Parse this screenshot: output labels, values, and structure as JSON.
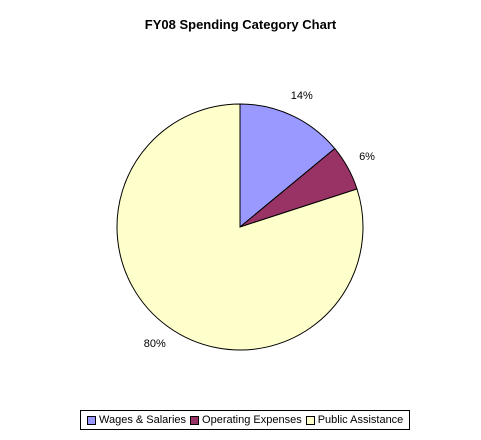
{
  "chart_data": {
    "type": "pie",
    "title": "FY08 Spending Category Chart",
    "legend_position": "bottom",
    "slices": [
      {
        "name": "Wages & Salaries",
        "value": 14,
        "label": "14%",
        "color": "#9999FF"
      },
      {
        "name": "Operating Expenses",
        "value": 6,
        "label": "6%",
        "color": "#993366"
      },
      {
        "name": "Public Assistance",
        "value": 80,
        "label": "80%",
        "color": "#FFFFCC"
      }
    ]
  }
}
